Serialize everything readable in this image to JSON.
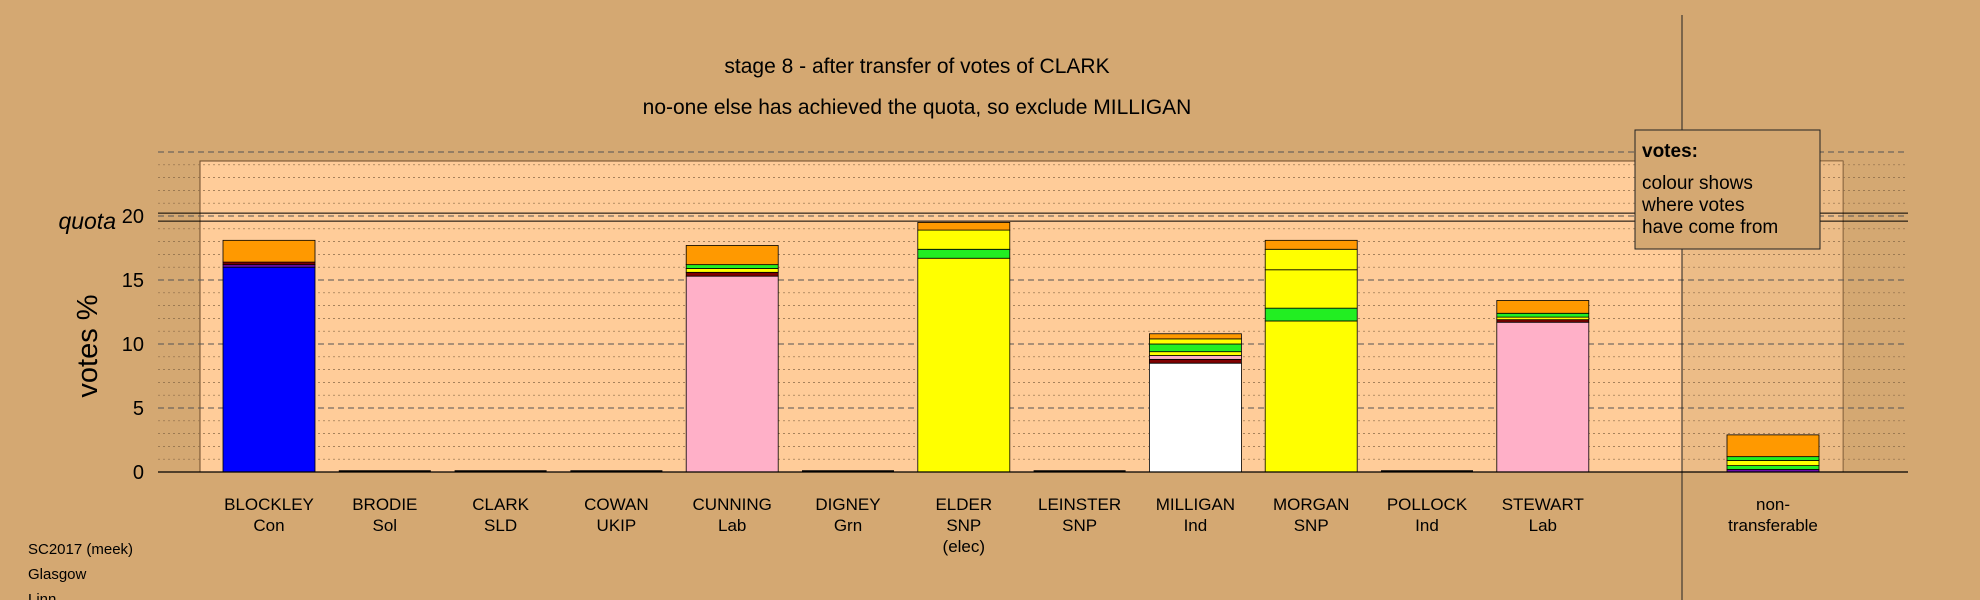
{
  "chart_data": {
    "type": "bar",
    "title": "stage 8 - after transfer of votes of CLARK",
    "subtitle": "no-one else has achieved the quota, so exclude MILLIGAN",
    "ylabel": "votes %",
    "ylim": [
      0,
      25
    ],
    "yticks": [
      "0",
      "5",
      "10",
      "15",
      "20"
    ],
    "quota_label": "quota",
    "quota_value": 19.6,
    "grid": true,
    "legend": {
      "title": "votes:",
      "lines": [
        "colour shows",
        "where votes",
        "have come from"
      ],
      "position": "top-right"
    },
    "candidates": [
      {
        "name": "BLOCKLEY",
        "party": "Con",
        "note": "",
        "segments": [
          {
            "value": 16.0,
            "color": "#0000ff"
          },
          {
            "value": 0.2,
            "color": "#6a0dad"
          },
          {
            "value": 0.2,
            "color": "#800000"
          },
          {
            "value": 1.7,
            "color": "#ff9900"
          }
        ]
      },
      {
        "name": "BRODIE",
        "party": "Sol",
        "note": "",
        "segments": []
      },
      {
        "name": "CLARK",
        "party": "SLD",
        "note": "",
        "segments": []
      },
      {
        "name": "COWAN",
        "party": "UKIP",
        "note": "",
        "segments": []
      },
      {
        "name": "CUNNING",
        "party": "Lab",
        "note": "",
        "segments": [
          {
            "value": 15.3,
            "color": "#ffb0c8"
          },
          {
            "value": 0.3,
            "color": "#800000"
          },
          {
            "value": 0.3,
            "color": "#ffff00"
          },
          {
            "value": 0.3,
            "color": "#22ee22"
          },
          {
            "value": 1.5,
            "color": "#ff9900"
          }
        ]
      },
      {
        "name": "DIGNEY",
        "party": "Grn",
        "note": "",
        "segments": []
      },
      {
        "name": "ELDER",
        "party": "SNP",
        "note": "(elec)",
        "segments": [
          {
            "value": 16.7,
            "color": "#ffff00"
          },
          {
            "value": 0.7,
            "color": "#22ee22"
          },
          {
            "value": 1.5,
            "color": "#ffff00"
          },
          {
            "value": 0.6,
            "color": "#ff9900"
          }
        ]
      },
      {
        "name": "LEINSTER",
        "party": "SNP",
        "note": "",
        "segments": []
      },
      {
        "name": "MILLIGAN",
        "party": "Ind",
        "note": "",
        "segments": [
          {
            "value": 8.5,
            "color": "#ffffff"
          },
          {
            "value": 0.3,
            "color": "#800000"
          },
          {
            "value": 0.3,
            "color": "#ffb0c8"
          },
          {
            "value": 0.3,
            "color": "#ffff00"
          },
          {
            "value": 0.6,
            "color": "#22ee22"
          },
          {
            "value": 0.4,
            "color": "#ffff00"
          },
          {
            "value": 0.4,
            "color": "#ff9900"
          }
        ]
      },
      {
        "name": "MORGAN",
        "party": "SNP",
        "note": "",
        "segments": [
          {
            "value": 11.8,
            "color": "#ffff00"
          },
          {
            "value": 1.0,
            "color": "#22ee22"
          },
          {
            "value": 3.0,
            "color": "#ffff00"
          },
          {
            "value": 1.6,
            "color": "#ffff00"
          },
          {
            "value": 0.7,
            "color": "#ff9900"
          }
        ]
      },
      {
        "name": "POLLOCK",
        "party": "Ind",
        "note": "",
        "segments": []
      },
      {
        "name": "STEWART",
        "party": "Lab",
        "note": "",
        "segments": [
          {
            "value": 11.7,
            "color": "#ffb0c8"
          },
          {
            "value": 0.2,
            "color": "#800000"
          },
          {
            "value": 0.2,
            "color": "#ffff00"
          },
          {
            "value": 0.3,
            "color": "#22ee22"
          },
          {
            "value": 1.0,
            "color": "#ff9900"
          }
        ]
      }
    ],
    "nontransferable": {
      "label_lines": [
        "non-",
        "transferable"
      ],
      "segments": [
        {
          "value": 0.2,
          "color": "#6a0dad"
        },
        {
          "value": 0.3,
          "color": "#22ee22"
        },
        {
          "value": 0.4,
          "color": "#ffff00"
        },
        {
          "value": 0.3,
          "color": "#22ee22"
        },
        {
          "value": 1.7,
          "color": "#ff9900"
        }
      ]
    }
  },
  "footer": [
    "SC2017 (meek)",
    "Glasgow",
    "Linn"
  ],
  "colors": {
    "background": "#d4a872",
    "plot_fill": "#ffcc99",
    "legend_fill": "#d4a872",
    "grid_major": "#555555",
    "grid_minor": "#8a6a48"
  }
}
